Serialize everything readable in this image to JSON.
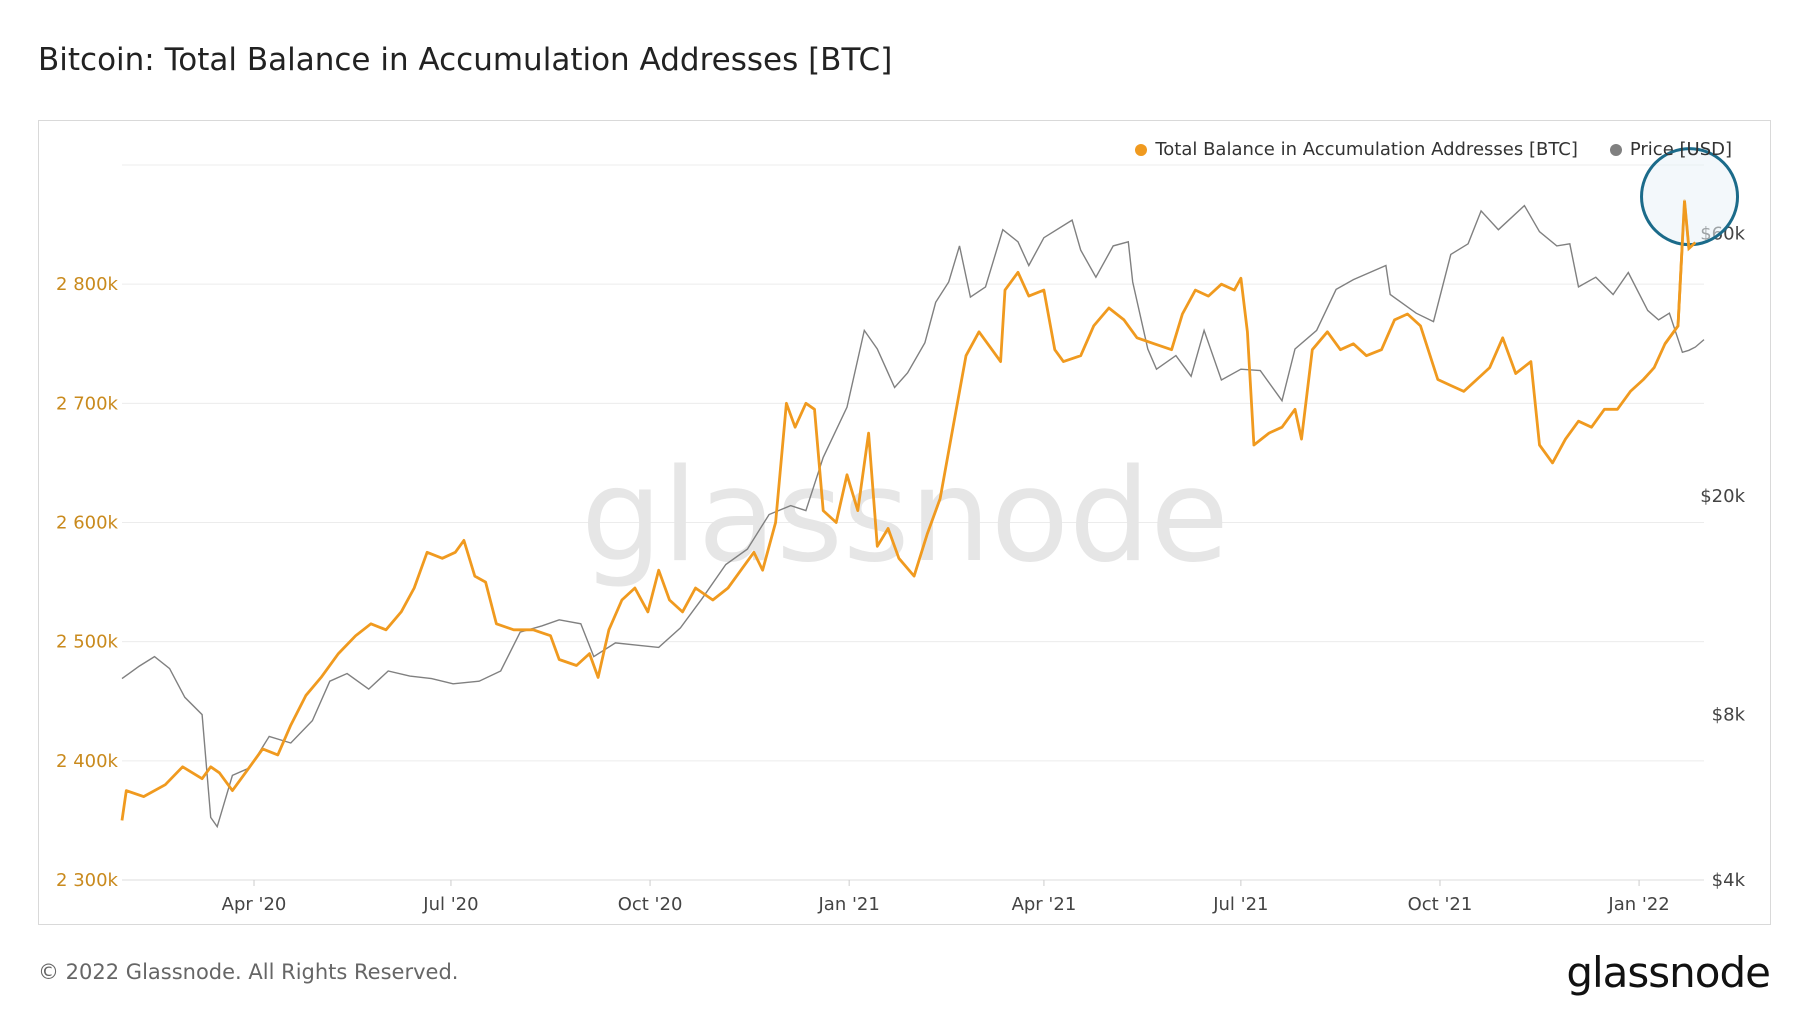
{
  "title": "Bitcoin: Total Balance in Accumulation Addresses [BTC]",
  "footer": "© 2022 Glassnode. All Rights Reserved.",
  "brand": "glassnode",
  "watermark": "glassnode",
  "colors": {
    "balance": "#f09a1f",
    "price": "#808080",
    "left_axis": "#c98a1d",
    "highlight_circle": "#1b6b8a"
  },
  "chart_data": {
    "type": "line",
    "title": "Bitcoin: Total Balance in Accumulation Addresses [BTC]",
    "x_range": [
      "2020-01-31",
      "2022-01-31"
    ],
    "x_ticks": [
      {
        "date": "2020-04-01",
        "label": "Apr '20"
      },
      {
        "date": "2020-07-01",
        "label": "Jul '20"
      },
      {
        "date": "2020-10-01",
        "label": "Oct '20"
      },
      {
        "date": "2021-01-01",
        "label": "Jan '21"
      },
      {
        "date": "2021-04-01",
        "label": "Apr '21"
      },
      {
        "date": "2021-07-01",
        "label": "Jul '21"
      },
      {
        "date": "2021-10-01",
        "label": "Oct '21"
      },
      {
        "date": "2022-01-01",
        "label": "Jan '22"
      }
    ],
    "y_left": {
      "range": [
        2300000,
        2900000
      ],
      "ticks": [
        {
          "value": 2300000,
          "label": "2 300k"
        },
        {
          "value": 2400000,
          "label": "2 400k"
        },
        {
          "value": 2500000,
          "label": "2 500k"
        },
        {
          "value": 2600000,
          "label": "2 600k"
        },
        {
          "value": 2700000,
          "label": "2 700k"
        },
        {
          "value": 2800000,
          "label": "2 800k"
        }
      ]
    },
    "y_right": {
      "scale": "log",
      "range": [
        4000,
        80000
      ],
      "ticks": [
        {
          "value": 4000,
          "label": "$4k"
        },
        {
          "value": 8000,
          "label": "$8k"
        },
        {
          "value": 20000,
          "label": "$20k"
        },
        {
          "value": 60000,
          "label": "$60k"
        }
      ]
    },
    "series": [
      {
        "name": "Total Balance in Accumulation Addresses [BTC]",
        "axis": "left",
        "points": [
          [
            "2020-01-31",
            2350000
          ],
          [
            "2020-02-02",
            2375000
          ],
          [
            "2020-02-10",
            2370000
          ],
          [
            "2020-02-20",
            2380000
          ],
          [
            "2020-02-28",
            2395000
          ],
          [
            "2020-03-08",
            2385000
          ],
          [
            "2020-03-12",
            2395000
          ],
          [
            "2020-03-16",
            2390000
          ],
          [
            "2020-03-22",
            2375000
          ],
          [
            "2020-03-28",
            2390000
          ],
          [
            "2020-04-05",
            2410000
          ],
          [
            "2020-04-12",
            2405000
          ],
          [
            "2020-04-18",
            2430000
          ],
          [
            "2020-04-25",
            2455000
          ],
          [
            "2020-05-02",
            2470000
          ],
          [
            "2020-05-10",
            2490000
          ],
          [
            "2020-05-18",
            2505000
          ],
          [
            "2020-05-25",
            2515000
          ],
          [
            "2020-06-01",
            2510000
          ],
          [
            "2020-06-08",
            2525000
          ],
          [
            "2020-06-14",
            2545000
          ],
          [
            "2020-06-20",
            2575000
          ],
          [
            "2020-06-27",
            2570000
          ],
          [
            "2020-07-03",
            2575000
          ],
          [
            "2020-07-07",
            2585000
          ],
          [
            "2020-07-12",
            2555000
          ],
          [
            "2020-07-17",
            2550000
          ],
          [
            "2020-07-22",
            2515000
          ],
          [
            "2020-07-30",
            2510000
          ],
          [
            "2020-08-08",
            2510000
          ],
          [
            "2020-08-16",
            2505000
          ],
          [
            "2020-08-20",
            2485000
          ],
          [
            "2020-08-28",
            2480000
          ],
          [
            "2020-09-03",
            2490000
          ],
          [
            "2020-09-07",
            2470000
          ],
          [
            "2020-09-12",
            2510000
          ],
          [
            "2020-09-18",
            2535000
          ],
          [
            "2020-09-24",
            2545000
          ],
          [
            "2020-09-30",
            2525000
          ],
          [
            "2020-10-05",
            2560000
          ],
          [
            "2020-10-10",
            2535000
          ],
          [
            "2020-10-16",
            2525000
          ],
          [
            "2020-10-22",
            2545000
          ],
          [
            "2020-10-30",
            2535000
          ],
          [
            "2020-11-06",
            2545000
          ],
          [
            "2020-11-12",
            2560000
          ],
          [
            "2020-11-18",
            2575000
          ],
          [
            "2020-11-22",
            2560000
          ],
          [
            "2020-11-28",
            2600000
          ],
          [
            "2020-12-03",
            2700000
          ],
          [
            "2020-12-07",
            2680000
          ],
          [
            "2020-12-12",
            2700000
          ],
          [
            "2020-12-16",
            2695000
          ],
          [
            "2020-12-20",
            2610000
          ],
          [
            "2020-12-26",
            2600000
          ],
          [
            "2020-12-31",
            2640000
          ],
          [
            "2021-01-05",
            2610000
          ],
          [
            "2021-01-10",
            2675000
          ],
          [
            "2021-01-14",
            2580000
          ],
          [
            "2021-01-19",
            2595000
          ],
          [
            "2021-01-24",
            2570000
          ],
          [
            "2021-01-31",
            2555000
          ],
          [
            "2021-02-06",
            2590000
          ],
          [
            "2021-02-12",
            2620000
          ],
          [
            "2021-02-18",
            2680000
          ],
          [
            "2021-02-24",
            2740000
          ],
          [
            "2021-03-02",
            2760000
          ],
          [
            "2021-03-08",
            2745000
          ],
          [
            "2021-03-12",
            2735000
          ],
          [
            "2021-03-14",
            2795000
          ],
          [
            "2021-03-20",
            2810000
          ],
          [
            "2021-03-25",
            2790000
          ],
          [
            "2021-04-01",
            2795000
          ],
          [
            "2021-04-06",
            2745000
          ],
          [
            "2021-04-10",
            2735000
          ],
          [
            "2021-04-18",
            2740000
          ],
          [
            "2021-04-24",
            2765000
          ],
          [
            "2021-05-01",
            2780000
          ],
          [
            "2021-05-08",
            2770000
          ],
          [
            "2021-05-14",
            2755000
          ],
          [
            "2021-05-22",
            2750000
          ],
          [
            "2021-05-30",
            2745000
          ],
          [
            "2021-06-04",
            2775000
          ],
          [
            "2021-06-10",
            2795000
          ],
          [
            "2021-06-16",
            2790000
          ],
          [
            "2021-06-22",
            2800000
          ],
          [
            "2021-06-28",
            2795000
          ],
          [
            "2021-07-01",
            2805000
          ],
          [
            "2021-07-04",
            2760000
          ],
          [
            "2021-07-07",
            2665000
          ],
          [
            "2021-07-14",
            2675000
          ],
          [
            "2021-07-20",
            2680000
          ],
          [
            "2021-07-26",
            2695000
          ],
          [
            "2021-07-29",
            2670000
          ],
          [
            "2021-08-03",
            2745000
          ],
          [
            "2021-08-10",
            2760000
          ],
          [
            "2021-08-16",
            2745000
          ],
          [
            "2021-08-22",
            2750000
          ],
          [
            "2021-08-28",
            2740000
          ],
          [
            "2021-09-04",
            2745000
          ],
          [
            "2021-09-10",
            2770000
          ],
          [
            "2021-09-16",
            2775000
          ],
          [
            "2021-09-22",
            2765000
          ],
          [
            "2021-09-30",
            2720000
          ],
          [
            "2021-10-06",
            2715000
          ],
          [
            "2021-10-12",
            2710000
          ],
          [
            "2021-10-18",
            2720000
          ],
          [
            "2021-10-24",
            2730000
          ],
          [
            "2021-10-30",
            2755000
          ],
          [
            "2021-11-05",
            2725000
          ],
          [
            "2021-11-12",
            2735000
          ],
          [
            "2021-11-16",
            2665000
          ],
          [
            "2021-11-22",
            2650000
          ],
          [
            "2021-11-28",
            2670000
          ],
          [
            "2021-12-04",
            2685000
          ],
          [
            "2021-12-10",
            2680000
          ],
          [
            "2021-12-16",
            2695000
          ],
          [
            "2021-12-22",
            2695000
          ],
          [
            "2021-12-28",
            2710000
          ],
          [
            "2022-01-03",
            2720000
          ],
          [
            "2022-01-08",
            2730000
          ],
          [
            "2022-01-13",
            2750000
          ],
          [
            "2022-01-19",
            2765000
          ],
          [
            "2022-01-22",
            2870000
          ],
          [
            "2022-01-24",
            2830000
          ],
          [
            "2022-01-27",
            2835000
          ]
        ]
      },
      {
        "name": "Price [USD]",
        "axis": "right",
        "points": [
          [
            "2020-01-31",
            9300
          ],
          [
            "2020-02-08",
            9800
          ],
          [
            "2020-02-15",
            10200
          ],
          [
            "2020-02-22",
            9700
          ],
          [
            "2020-02-29",
            8600
          ],
          [
            "2020-03-08",
            8000
          ],
          [
            "2020-03-12",
            5200
          ],
          [
            "2020-03-15",
            5000
          ],
          [
            "2020-03-22",
            6200
          ],
          [
            "2020-03-30",
            6400
          ],
          [
            "2020-04-08",
            7300
          ],
          [
            "2020-04-18",
            7100
          ],
          [
            "2020-04-28",
            7800
          ],
          [
            "2020-05-06",
            9200
          ],
          [
            "2020-05-14",
            9500
          ],
          [
            "2020-05-24",
            8900
          ],
          [
            "2020-06-02",
            9600
          ],
          [
            "2020-06-12",
            9400
          ],
          [
            "2020-06-22",
            9300
          ],
          [
            "2020-07-02",
            9100
          ],
          [
            "2020-07-14",
            9200
          ],
          [
            "2020-07-24",
            9600
          ],
          [
            "2020-08-02",
            11300
          ],
          [
            "2020-08-12",
            11600
          ],
          [
            "2020-08-20",
            11900
          ],
          [
            "2020-08-30",
            11700
          ],
          [
            "2020-09-05",
            10200
          ],
          [
            "2020-09-15",
            10800
          ],
          [
            "2020-09-25",
            10700
          ],
          [
            "2020-10-05",
            10600
          ],
          [
            "2020-10-15",
            11500
          ],
          [
            "2020-10-25",
            13000
          ],
          [
            "2020-11-05",
            15000
          ],
          [
            "2020-11-15",
            16000
          ],
          [
            "2020-11-25",
            18500
          ],
          [
            "2020-12-05",
            19200
          ],
          [
            "2020-12-12",
            18800
          ],
          [
            "2020-12-20",
            23500
          ],
          [
            "2020-12-31",
            29000
          ],
          [
            "2021-01-08",
            40000
          ],
          [
            "2021-01-14",
            37000
          ],
          [
            "2021-01-22",
            31500
          ],
          [
            "2021-01-28",
            33500
          ],
          [
            "2021-02-05",
            38000
          ],
          [
            "2021-02-10",
            45000
          ],
          [
            "2021-02-16",
            49000
          ],
          [
            "2021-02-21",
            57000
          ],
          [
            "2021-02-26",
            46000
          ],
          [
            "2021-03-05",
            48000
          ],
          [
            "2021-03-13",
            61000
          ],
          [
            "2021-03-20",
            58000
          ],
          [
            "2021-03-25",
            52500
          ],
          [
            "2021-04-01",
            59000
          ],
          [
            "2021-04-14",
            63500
          ],
          [
            "2021-04-18",
            56000
          ],
          [
            "2021-04-25",
            50000
          ],
          [
            "2021-05-03",
            57000
          ],
          [
            "2021-05-10",
            58000
          ],
          [
            "2021-05-12",
            49000
          ],
          [
            "2021-05-19",
            37000
          ],
          [
            "2021-05-23",
            34000
          ],
          [
            "2021-06-01",
            36000
          ],
          [
            "2021-06-08",
            33000
          ],
          [
            "2021-06-14",
            40000
          ],
          [
            "2021-06-22",
            32500
          ],
          [
            "2021-07-01",
            34000
          ],
          [
            "2021-07-10",
            33800
          ],
          [
            "2021-07-20",
            29800
          ],
          [
            "2021-07-26",
            37000
          ],
          [
            "2021-08-05",
            40000
          ],
          [
            "2021-08-14",
            47500
          ],
          [
            "2021-08-22",
            49500
          ],
          [
            "2021-09-06",
            52500
          ],
          [
            "2021-09-08",
            46500
          ],
          [
            "2021-09-20",
            43000
          ],
          [
            "2021-09-28",
            41500
          ],
          [
            "2021-10-06",
            55000
          ],
          [
            "2021-10-14",
            57500
          ],
          [
            "2021-10-20",
            66000
          ],
          [
            "2021-10-28",
            61000
          ],
          [
            "2021-11-09",
            67500
          ],
          [
            "2021-11-16",
            60500
          ],
          [
            "2021-11-24",
            57000
          ],
          [
            "2021-11-30",
            57500
          ],
          [
            "2021-12-04",
            48000
          ],
          [
            "2021-12-12",
            50000
          ],
          [
            "2021-12-20",
            46500
          ],
          [
            "2021-12-27",
            51000
          ],
          [
            "2022-01-05",
            43500
          ],
          [
            "2022-01-10",
            41800
          ],
          [
            "2022-01-15",
            43000
          ],
          [
            "2022-01-21",
            36500
          ],
          [
            "2022-01-24",
            36800
          ],
          [
            "2022-01-27",
            37300
          ],
          [
            "2022-01-31",
            38500
          ]
        ]
      }
    ],
    "legend": {
      "placement": "top-right",
      "items": [
        "Total Balance in Accumulation Addresses [BTC]",
        "Price [USD]"
      ]
    },
    "annotation": {
      "type": "circle",
      "date": "2022-01-22",
      "value": 2860000
    },
    "grid": true
  }
}
